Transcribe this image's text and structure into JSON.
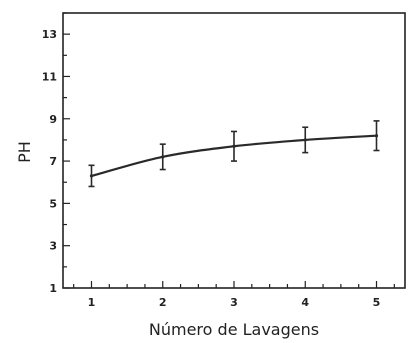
{
  "chart_data": {
    "type": "line",
    "title": "",
    "xlabel": "Número de Lavagens",
    "ylabel": "PH",
    "xlim": [
      0.6,
      5.4
    ],
    "ylim": [
      1,
      14
    ],
    "x_ticks": [
      1,
      2,
      3,
      4,
      5
    ],
    "x_tick_labels": [
      "1",
      "2",
      "3",
      "4",
      "5"
    ],
    "y_ticks": [
      1,
      3,
      5,
      7,
      9,
      11,
      13
    ],
    "y_tick_labels": [
      "1",
      "3",
      "5",
      "7",
      "9",
      "11",
      "13"
    ],
    "grid": false,
    "legend": "none",
    "series": [
      {
        "x": [
          1,
          2,
          3,
          4,
          5
        ],
        "y": [
          6.3,
          7.2,
          7.7,
          8.0,
          8.2
        ],
        "error": [
          0.5,
          0.6,
          0.7,
          0.6,
          0.7
        ]
      }
    ]
  },
  "colors": {
    "axis": "#222222",
    "line": "#2a2a2a",
    "background": "#ffffff"
  }
}
